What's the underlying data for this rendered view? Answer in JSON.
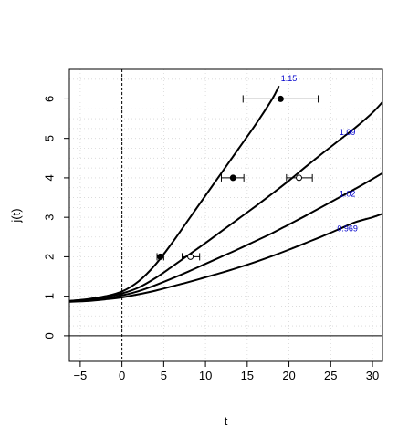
{
  "chart_data": {
    "type": "line",
    "xlabel": "t",
    "ylabel": "j(t)",
    "xlim": [
      -6.3,
      31.2
    ],
    "ylim": [
      -0.65,
      6.75
    ],
    "xticks": [
      -5,
      0,
      5,
      10,
      15,
      20,
      25,
      30
    ],
    "xtick_labels": [
      "−5",
      "0",
      "5",
      "10",
      "15",
      "20",
      "25",
      "30"
    ],
    "yticks": [
      0,
      1,
      2,
      3,
      4,
      5,
      6
    ],
    "ytick_labels": [
      "0",
      "1",
      "2",
      "3",
      "4",
      "5",
      "6"
    ],
    "grid": true,
    "reference_lines": {
      "vertical_dashed_x": 0,
      "horizontal_solid_y": 0
    },
    "series": [
      {
        "name": "1.15",
        "label_pos": [
          20.0,
          6.45
        ],
        "x": [
          -6.3,
          -4,
          -2,
          0,
          2,
          4,
          6,
          8,
          10,
          12,
          14,
          16,
          18,
          18.8
        ],
        "y": [
          0.88,
          0.93,
          1.0,
          1.12,
          1.38,
          1.8,
          2.35,
          2.95,
          3.55,
          4.15,
          4.75,
          5.35,
          6.0,
          6.33
        ]
      },
      {
        "name": "1.09",
        "label_pos": [
          27.0,
          5.08
        ],
        "x": [
          -6.3,
          -4,
          -2,
          0,
          2,
          4,
          6,
          8,
          10,
          12,
          14,
          16,
          18,
          20,
          22,
          24,
          26,
          28,
          30,
          31.2
        ],
        "y": [
          0.88,
          0.92,
          0.98,
          1.07,
          1.22,
          1.46,
          1.75,
          2.05,
          2.35,
          2.66,
          2.97,
          3.28,
          3.6,
          3.93,
          4.28,
          4.62,
          4.95,
          5.28,
          5.65,
          5.92
        ]
      },
      {
        "name": "1.02",
        "label_pos": [
          27.0,
          3.52
        ],
        "x": [
          -6.3,
          -4,
          -2,
          0,
          2,
          4,
          6,
          8,
          10,
          12,
          14,
          16,
          18,
          20,
          22,
          24,
          26,
          28,
          30,
          31.2
        ],
        "y": [
          0.87,
          0.9,
          0.94,
          1.02,
          1.13,
          1.28,
          1.45,
          1.63,
          1.82,
          2.01,
          2.2,
          2.4,
          2.6,
          2.82,
          3.04,
          3.27,
          3.5,
          3.73,
          3.97,
          4.12
        ]
      },
      {
        "name": "0.969",
        "label_pos": [
          27.0,
          2.65
        ],
        "x": [
          -6.3,
          -4,
          -2,
          0,
          2,
          4,
          6,
          8,
          10,
          12,
          14,
          16,
          18,
          20,
          22,
          24,
          26,
          28,
          30,
          31.2
        ],
        "y": [
          0.86,
          0.88,
          0.92,
          0.97,
          1.05,
          1.14,
          1.25,
          1.36,
          1.48,
          1.6,
          1.73,
          1.87,
          2.02,
          2.18,
          2.35,
          2.52,
          2.7,
          2.88,
          3.0,
          3.09
        ]
      }
    ],
    "points": [
      {
        "x": 4.6,
        "y": 2.0,
        "xerr_low": 4.2,
        "xerr_high": 5.0,
        "filled": true
      },
      {
        "x": 8.2,
        "y": 2.0,
        "xerr_low": 7.2,
        "xerr_high": 9.3,
        "filled": false
      },
      {
        "x": 13.3,
        "y": 4.0,
        "xerr_low": 11.9,
        "xerr_high": 14.6,
        "filled": true
      },
      {
        "x": 21.2,
        "y": 4.0,
        "xerr_low": 19.7,
        "xerr_high": 22.8,
        "filled": false
      },
      {
        "x": 19.0,
        "y": 6.0,
        "xerr_low": 14.5,
        "xerr_high": 23.5,
        "filled": true
      }
    ]
  }
}
